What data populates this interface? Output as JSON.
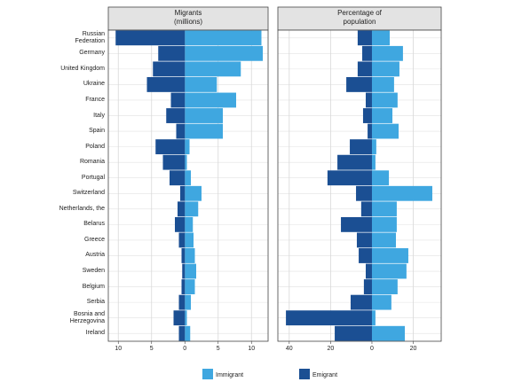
{
  "chart_data": [
    {
      "type": "bar",
      "orientation": "horizontal",
      "title": "Migrants\n(millions)",
      "categories": [
        "Russian\nFederation",
        "Germany",
        "United Kingdom",
        "Ukraine",
        "France",
        "Italy",
        "Spain",
        "Poland",
        "Romania",
        "Portugal",
        "Switzerland",
        "Netherlands, the",
        "Belarus",
        "Greece",
        "Austria",
        "Sweden",
        "Belgium",
        "Serbia",
        "Bosnia and\nHerzegovina",
        "Ireland"
      ],
      "series": [
        {
          "name": "Immigrant",
          "color": "#3fa7e0",
          "values": [
            11.5,
            11.7,
            8.4,
            4.8,
            7.7,
            5.7,
            5.7,
            0.7,
            0.3,
            0.9,
            2.5,
            2.0,
            1.2,
            1.3,
            1.5,
            1.7,
            1.5,
            0.9,
            0.3,
            0.8
          ]
        },
        {
          "name": "Emigrant",
          "color": "#1b4f93",
          "values": [
            -10.4,
            -4.0,
            -4.8,
            -5.7,
            -2.1,
            -2.8,
            -1.3,
            -4.4,
            -3.3,
            -2.3,
            -0.7,
            -1.1,
            -1.5,
            -0.9,
            -0.5,
            -0.4,
            -0.5,
            -0.9,
            -1.7,
            -0.9
          ]
        }
      ],
      "xlim": [
        -11.5,
        12.5
      ],
      "xticks": [
        {
          "value": -10,
          "label": "10"
        },
        {
          "value": -5,
          "label": "5"
        },
        0,
        5,
        10
      ],
      "grid": true
    },
    {
      "type": "bar",
      "orientation": "horizontal",
      "title": "Percentage of\npopulation",
      "series": [
        {
          "color": "#3fa7e0",
          "values": [
            8.6,
            15.0,
            13.3,
            10.7,
            12.4,
            9.9,
            12.9,
            2.1,
            1.7,
            8.2,
            29.2,
            12.0,
            12.0,
            11.6,
            17.6,
            16.7,
            12.4,
            9.4,
            1.7,
            15.9
          ]
        },
        {
          "color": "#1b4f93",
          "values": [
            -6.9,
            -4.7,
            -6.9,
            -12.4,
            -3.0,
            -4.3,
            -2.1,
            -10.7,
            -16.7,
            -21.5,
            -7.7,
            -5.2,
            -15.0,
            -7.3,
            -6.4,
            -3.0,
            -3.9,
            -10.3,
            -41.6,
            -18.0
          ]
        }
      ],
      "xlim": [
        -45.5,
        33.5
      ],
      "xticks": [
        {
          "value": -40,
          "label": "40"
        },
        {
          "value": -20,
          "label": "20"
        },
        0,
        20
      ],
      "grid": true
    }
  ]
}
